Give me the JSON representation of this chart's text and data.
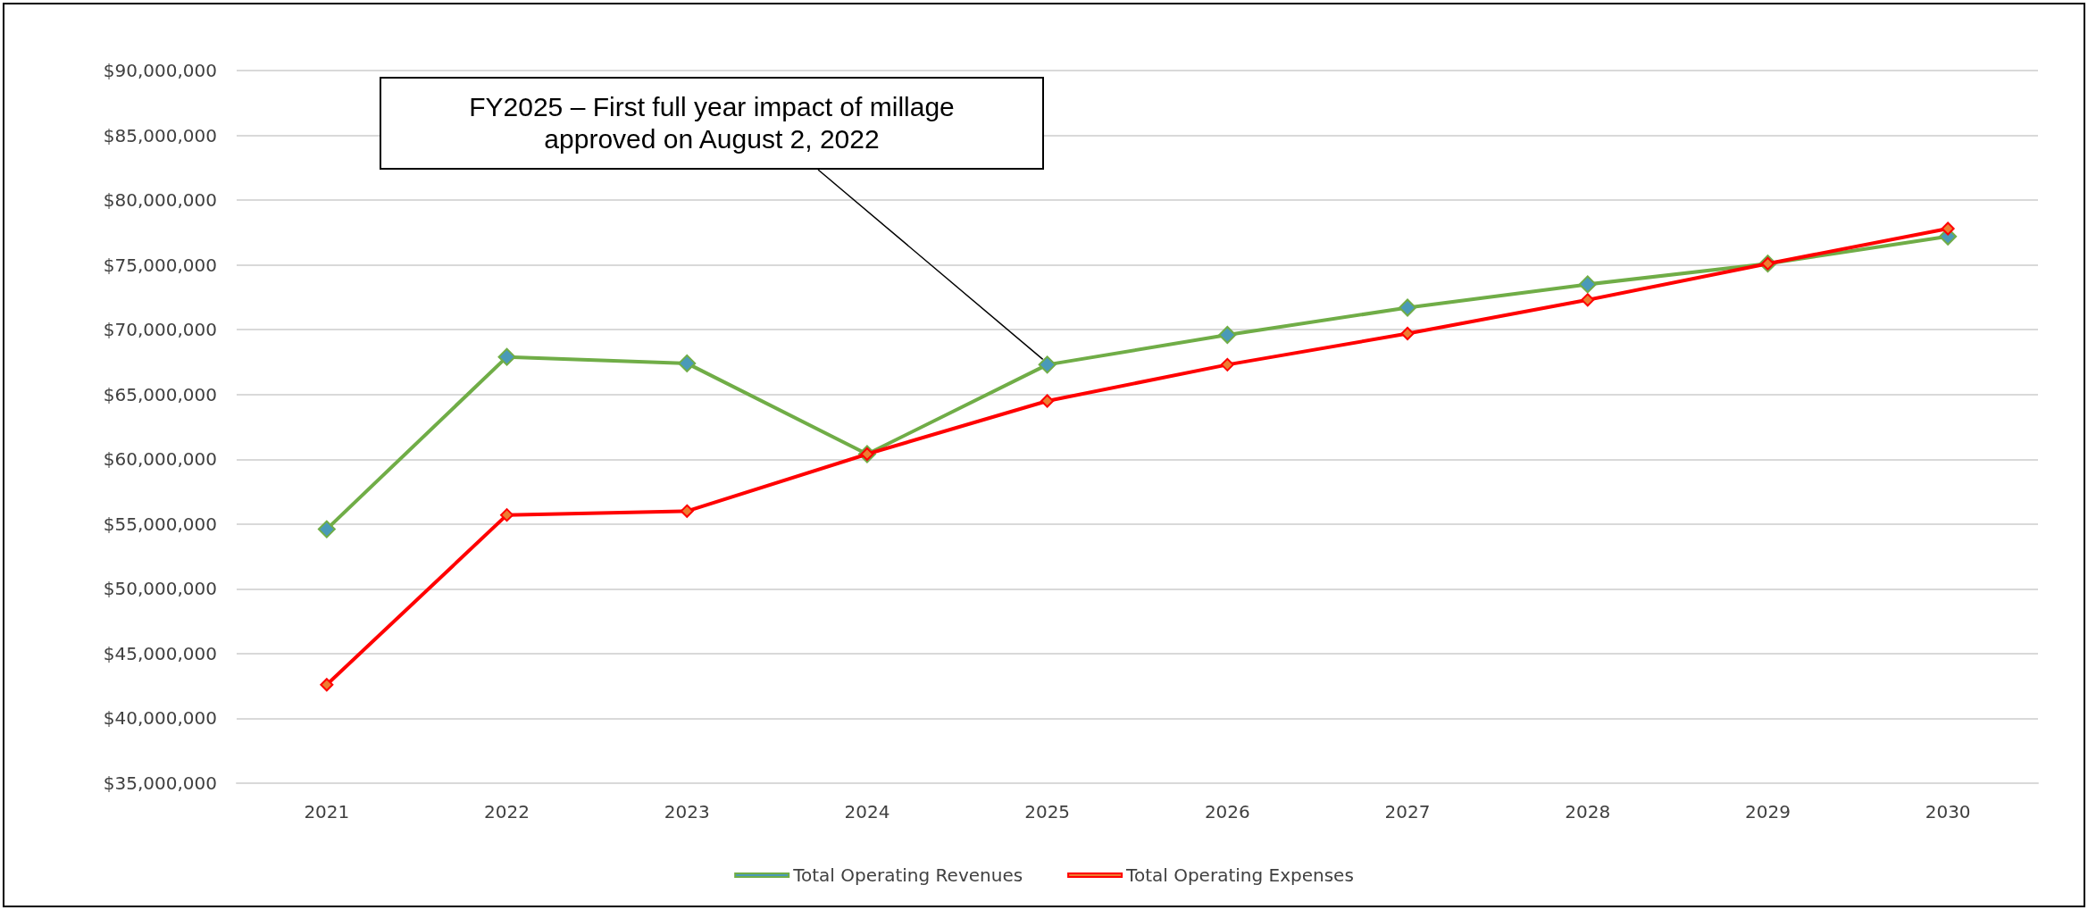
{
  "chart_data": {
    "type": "line",
    "categories": [
      "2021",
      "2022",
      "2023",
      "2024",
      "2025",
      "2026",
      "2027",
      "2028",
      "2029",
      "2030"
    ],
    "series": [
      {
        "name": "Total Operating Revenues",
        "color": "#70ad47",
        "values": [
          54600000,
          67900000,
          67400000,
          60400000,
          67300000,
          69600000,
          71700000,
          73500000,
          75100000,
          77200000
        ]
      },
      {
        "name": "Total Operating Expenses",
        "color": "#ff0000",
        "values": [
          42600000,
          55700000,
          56000000,
          60400000,
          64500000,
          67300000,
          69700000,
          72300000,
          75100000,
          77800000
        ]
      }
    ],
    "ylim": [
      35000000,
      90000000
    ],
    "yticks": [
      {
        "value": 35000000,
        "label": "$35,000,000"
      },
      {
        "value": 40000000,
        "label": "$40,000,000"
      },
      {
        "value": 45000000,
        "label": "$45,000,000"
      },
      {
        "value": 50000000,
        "label": "$50,000,000"
      },
      {
        "value": 55000000,
        "label": "$55,000,000"
      },
      {
        "value": 60000000,
        "label": "$60,000,000"
      },
      {
        "value": 65000000,
        "label": "$65,000,000"
      },
      {
        "value": 70000000,
        "label": "$70,000,000"
      },
      {
        "value": 75000000,
        "label": "$75,000,000"
      },
      {
        "value": 80000000,
        "label": "$80,000,000"
      },
      {
        "value": 85000000,
        "label": "$85,000,000"
      },
      {
        "value": 90000000,
        "label": "$90,000,000"
      }
    ],
    "grid": "y",
    "legend": "bottom",
    "marker": "diamond",
    "line_style": "solid",
    "annotations": [
      {
        "text": "FY2025 – First full year impact of millage approved on August 2, 2022",
        "x": "2025",
        "y": 67300000
      }
    ]
  }
}
